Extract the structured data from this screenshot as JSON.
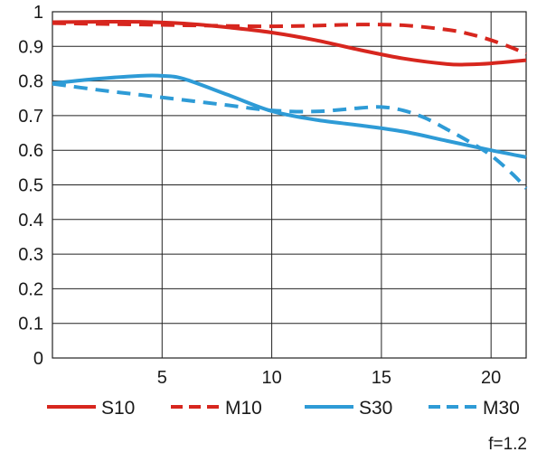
{
  "chart_data": {
    "type": "line",
    "title": "",
    "xlabel": "",
    "ylabel": "",
    "xlim": [
      0,
      21.6
    ],
    "ylim": [
      0,
      1
    ],
    "grid": true,
    "legend_position": "bottom",
    "x_ticks": [
      "5",
      "10",
      "15",
      "20"
    ],
    "y_ticks": [
      "0",
      "0.1",
      "0.2",
      "0.3",
      "0.4",
      "0.5",
      "0.6",
      "0.7",
      "0.8",
      "0.9",
      "1"
    ],
    "note": "f=1.2",
    "series": [
      {
        "name": "S10",
        "color": "#d7261e",
        "style": "solid",
        "x": [
          0,
          2,
          4,
          6,
          8,
          10,
          12,
          14,
          16,
          18,
          19,
          20,
          21.6
        ],
        "y": [
          0.97,
          0.971,
          0.971,
          0.966,
          0.955,
          0.94,
          0.918,
          0.89,
          0.865,
          0.849,
          0.848,
          0.851,
          0.86
        ]
      },
      {
        "name": "M10",
        "color": "#d7261e",
        "style": "dashed",
        "x": [
          0,
          2,
          4,
          6,
          8,
          10,
          12,
          14,
          16,
          18,
          19,
          20,
          21,
          21.6
        ],
        "y": [
          0.967,
          0.965,
          0.963,
          0.961,
          0.959,
          0.958,
          0.96,
          0.963,
          0.961,
          0.948,
          0.936,
          0.918,
          0.895,
          0.878
        ]
      },
      {
        "name": "S30",
        "color": "#2e9bd6",
        "style": "solid",
        "x": [
          0,
          2,
          4,
          5,
          6,
          8,
          10,
          12,
          14,
          16,
          18,
          20,
          21.6
        ],
        "y": [
          0.793,
          0.806,
          0.815,
          0.815,
          0.806,
          0.76,
          0.713,
          0.688,
          0.672,
          0.654,
          0.627,
          0.6,
          0.58
        ]
      },
      {
        "name": "M30",
        "color": "#2e9bd6",
        "style": "dashed",
        "x": [
          0,
          2,
          4,
          6,
          8,
          10,
          12,
          14,
          15,
          16,
          17,
          18,
          19,
          20,
          21,
          21.6
        ],
        "y": [
          0.792,
          0.775,
          0.76,
          0.745,
          0.73,
          0.715,
          0.712,
          0.722,
          0.725,
          0.715,
          0.693,
          0.66,
          0.625,
          0.585,
          0.53,
          0.49
        ]
      }
    ]
  }
}
